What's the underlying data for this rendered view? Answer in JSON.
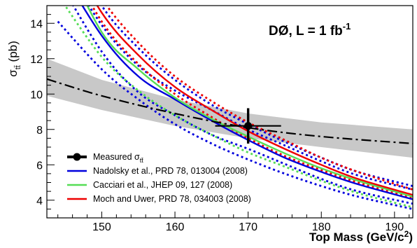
{
  "chart_data": {
    "type": "line",
    "title": "",
    "experiment_label": {
      "main": "DØ, L = 1 fb",
      "superscript": "-1"
    },
    "xlabel": {
      "main": "Top Mass (GeV/c",
      "superscript": "2",
      "close": ")"
    },
    "ylabel": {
      "main": "σ",
      "subscript": "tt̄",
      "unit": " (pb)"
    },
    "xlim": [
      142.5,
      192.5
    ],
    "ylim": [
      3,
      15
    ],
    "xticks": [
      150,
      160,
      170,
      180,
      190
    ],
    "yticks": [
      4,
      6,
      8,
      10,
      12,
      14
    ],
    "grid": false,
    "legend_position": "bottom-left",
    "measured": {
      "name": "Measured σ",
      "name_subscript": "tt̄",
      "x": 170,
      "y": 8.2,
      "y_err": [
        7.2,
        9.2
      ],
      "x_err": [
        165.5,
        174.5
      ],
      "color": "#000000"
    },
    "fit_band": {
      "x": [
        142.5,
        150,
        160,
        170,
        180,
        192.5
      ],
      "center": [
        10.85,
        9.9,
        8.9,
        8.1,
        7.6,
        7.2
      ],
      "lower": [
        9.9,
        9.1,
        8.2,
        7.5,
        7.0,
        6.4
      ],
      "upper": [
        12.0,
        10.8,
        9.7,
        8.9,
        8.4,
        8.0
      ],
      "band_color": "#c8c8c8",
      "line_color": "#000000"
    },
    "series": [
      {
        "name": "Nadolsky et al., PRD 78, 013004 (2008)",
        "color": "#0000dd",
        "x": [
          144,
          150,
          155,
          160,
          165,
          170,
          175,
          180,
          185,
          192.5
        ],
        "center": [
          17.3,
          13.3,
          11.0,
          9.7,
          8.5,
          7.4,
          6.4,
          5.6,
          4.9,
          4.05
        ],
        "lower": [
          16.5,
          12.4,
          10.1,
          8.8,
          7.7,
          6.9,
          6.05,
          5.2,
          4.5,
          3.8
        ],
        "upper": [
          17.9,
          13.9,
          11.6,
          10.2,
          9.1,
          8.0,
          7.1,
          6.2,
          5.4,
          4.6
        ],
        "wide_lower": [
          14.1,
          11.4,
          9.7,
          8.3,
          7.2,
          6.3,
          5.5,
          4.8,
          4.2,
          3.5
        ],
        "wide_upper": [
          19.5,
          15.0,
          12.6,
          10.8,
          9.4,
          8.3,
          7.3,
          6.4,
          5.6,
          4.8
        ]
      },
      {
        "name": "Cacciari et al., JHEP 09, 127 (2008)",
        "color": "#55dd55",
        "x": [
          144,
          150,
          155,
          160,
          165,
          170,
          175,
          180,
          185,
          192.5
        ],
        "center": [
          18.5,
          13.5,
          11.4,
          9.8,
          8.6,
          7.6,
          6.65,
          5.8,
          5.1,
          4.2
        ],
        "lower": [
          15.6,
          12.1,
          10.2,
          8.8,
          7.7,
          6.7,
          5.9,
          5.1,
          4.4,
          3.6
        ]
      },
      {
        "name": "Moch and Uwer, PRD 78, 034003 (2008)",
        "color": "#ee0000",
        "x": [
          144,
          150,
          155,
          160,
          165,
          170,
          175,
          180,
          185,
          192.5
        ],
        "center": [
          19.0,
          14.6,
          12.2,
          10.4,
          9.1,
          7.9,
          6.9,
          6.0,
          5.2,
          4.3
        ],
        "lower": [
          18.5,
          14.1,
          11.7,
          10.0,
          8.7,
          7.5,
          6.5,
          5.7,
          5.0,
          4.1
        ],
        "upper": [
          19.6,
          15.4,
          12.9,
          11.0,
          9.6,
          8.4,
          7.4,
          6.4,
          5.6,
          4.6
        ]
      }
    ]
  }
}
